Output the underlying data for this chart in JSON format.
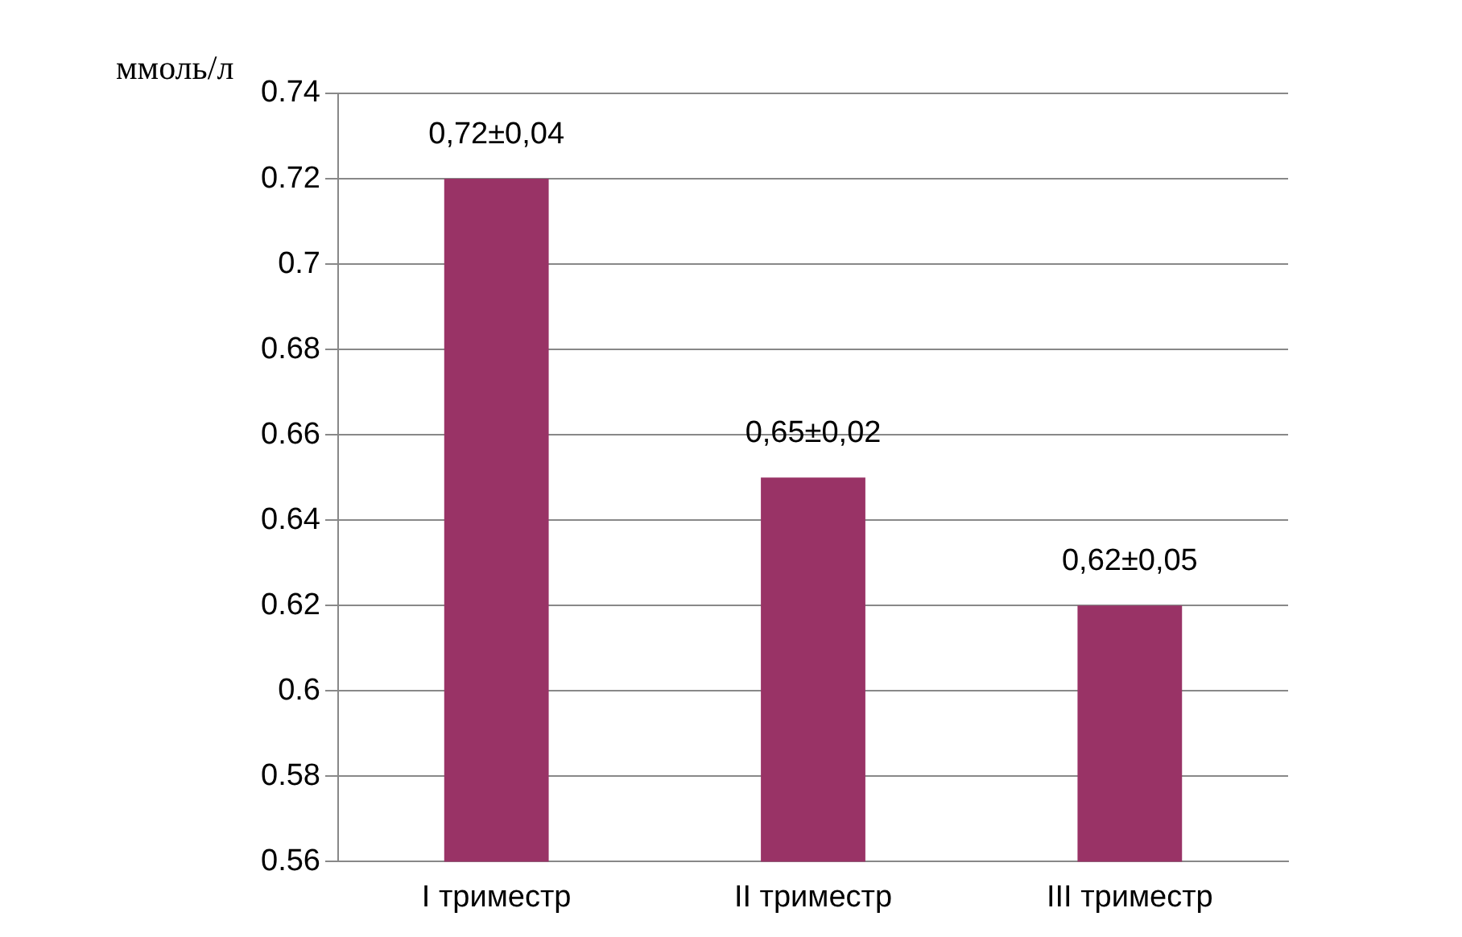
{
  "chart_data": {
    "type": "bar",
    "ylabel": "ммоль/л",
    "categories": [
      "I триместр",
      "II триместр",
      "III триместр"
    ],
    "values": [
      0.72,
      0.65,
      0.62
    ],
    "color": "#993366",
    "value_labels": [
      "0,72±0,04",
      "0,65±0,02",
      "0,62±0,05"
    ],
    "ylim": [
      0.56,
      0.74
    ],
    "yticks": [
      0.56,
      0.58,
      0.6,
      0.62,
      0.64,
      0.66,
      0.68,
      0.7,
      0.72,
      0.74
    ],
    "grid": "y",
    "legend": false
  }
}
